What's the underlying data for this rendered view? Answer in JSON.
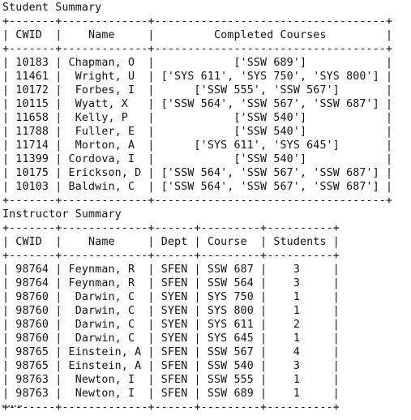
{
  "student_summary": {
    "title": "Student Summary",
    "columns": [
      "CWID",
      "Name",
      "Completed Courses"
    ],
    "rows": [
      [
        "10183",
        "Chapman, O",
        "['SSW 689']"
      ],
      [
        "11461",
        "Wright, U",
        "['SYS 611', 'SYS 750', 'SYS 800']"
      ],
      [
        "10172",
        "Forbes, I",
        "['SSW 555', 'SSW 567']"
      ],
      [
        "10115",
        "Wyatt, X",
        "['SSW 564', 'SSW 567', 'SSW 687']"
      ],
      [
        "11658",
        "Kelly, P",
        "['SSW 540']"
      ],
      [
        "11788",
        "Fuller, E",
        "['SSW 540']"
      ],
      [
        "11714",
        "Morton, A",
        "['SYS 611', 'SYS 645']"
      ],
      [
        "11399",
        "Cordova, I",
        "['SSW 540']"
      ],
      [
        "10175",
        "Erickson, D",
        "['SSW 564', 'SSW 567', 'SSW 687']"
      ],
      [
        "10103",
        "Baldwin, C",
        "['SSW 564', 'SSW 567', 'SSW 687']"
      ]
    ]
  },
  "instructor_summary": {
    "title": "Instructor Summary",
    "columns": [
      "CWID",
      "Name",
      "Dept",
      "Course",
      "Students"
    ],
    "rows": [
      [
        "98764",
        "Feynman, R",
        "SFEN",
        "SSW 687",
        "3"
      ],
      [
        "98764",
        "Feynman, R",
        "SFEN",
        "SSW 564",
        "3"
      ],
      [
        "98760",
        "Darwin, C",
        "SYEN",
        "SYS 750",
        "1"
      ],
      [
        "98760",
        "Darwin, C",
        "SYEN",
        "SYS 800",
        "1"
      ],
      [
        "98760",
        "Darwin, C",
        "SYEN",
        "SYS 611",
        "2"
      ],
      [
        "98760",
        "Darwin, C",
        "SYEN",
        "SYS 645",
        "1"
      ],
      [
        "98765",
        "Einstein, A",
        "SFEN",
        "SSW 567",
        "4"
      ],
      [
        "98765",
        "Einstein, A",
        "SFEN",
        "SSW 540",
        "3"
      ],
      [
        "98763",
        "Newton, I",
        "SFEN",
        "SSW 555",
        "1"
      ],
      [
        "98763",
        "Newton, I",
        "SFEN",
        "SSW 689",
        "1"
      ]
    ]
  }
}
